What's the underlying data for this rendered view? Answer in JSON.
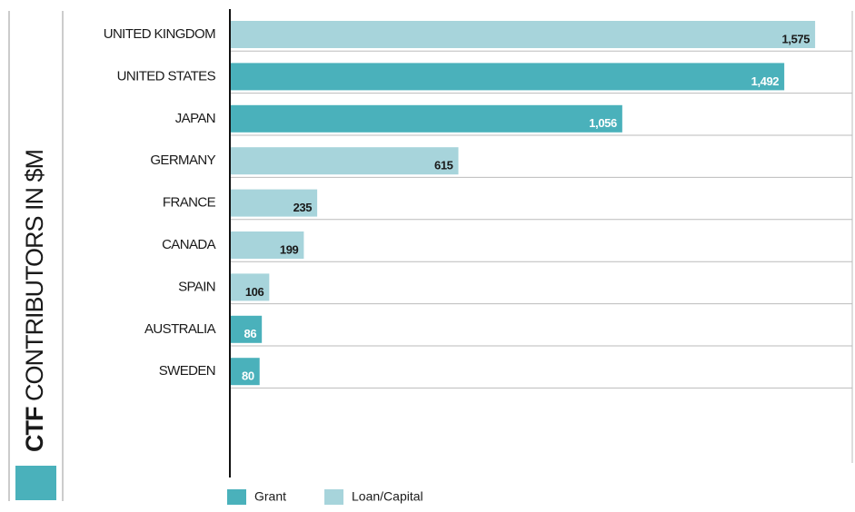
{
  "chart_data": {
    "type": "bar",
    "orientation": "horizontal",
    "title": "CTF CONTRIBUTORS IN $M",
    "categories": [
      "UNITED KINGDOM",
      "UNITED STATES",
      "JAPAN",
      "GERMANY",
      "FRANCE",
      "CANADA",
      "SPAIN",
      "AUSTRALIA",
      "SWEDEN"
    ],
    "series": [
      {
        "name": "Grant",
        "color": "#4ab1bb",
        "values": [
          null,
          1492,
          1056,
          null,
          null,
          null,
          null,
          86,
          80
        ],
        "value_labels": [
          null,
          "1,492",
          "1,056",
          null,
          null,
          null,
          null,
          "86",
          "80"
        ]
      },
      {
        "name": "Loan/Capital",
        "color": "#a7d4db",
        "values": [
          1575,
          null,
          null,
          615,
          235,
          199,
          106,
          null,
          null
        ],
        "value_labels": [
          "1,575",
          null,
          null,
          "615",
          "235",
          "199",
          "106",
          null,
          null
        ]
      }
    ],
    "xlim": [
      0,
      1675
    ],
    "legend": "bottom"
  }
}
